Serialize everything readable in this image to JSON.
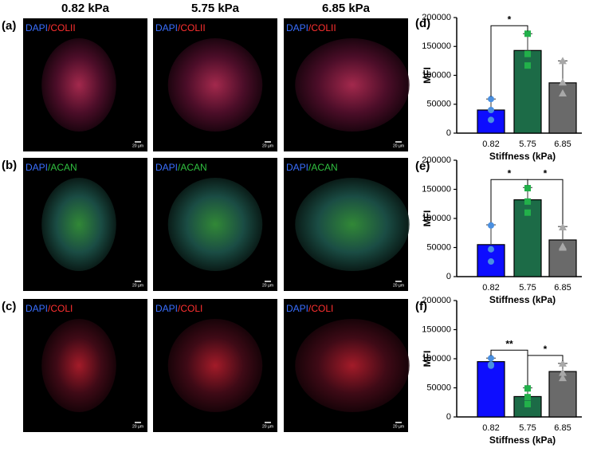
{
  "images": {
    "columns": [
      "0.82 kPa",
      "5.75 kPa",
      "6.85 kPa"
    ],
    "rows": [
      {
        "panel": "(a)",
        "stain_nuclear": "DAPI",
        "stain_marker": "/COLII",
        "scale_bar": "20 µm"
      },
      {
        "panel": "(b)",
        "stain_nuclear": "DAPI",
        "stain_marker": "/ACAN",
        "scale_bar": "20 µm"
      },
      {
        "panel": "(c)",
        "stain_nuclear": "DAPI",
        "stain_marker": "/COLI",
        "scale_bar": "20 µm"
      }
    ]
  },
  "chart_data": [
    {
      "type": "bar",
      "panel": "(d)",
      "categories": [
        "0.82",
        "5.75",
        "6.85"
      ],
      "values": [
        40000,
        143000,
        87000
      ],
      "errors": [
        19000,
        29000,
        38000
      ],
      "colors": [
        "#0d0dff",
        "#1c6b47",
        "#6a6a6a"
      ],
      "point_colors": [
        "#4a8fe0",
        "#22b04a",
        "#a8a8a8"
      ],
      "markers": [
        "circle",
        "square",
        "triangle"
      ],
      "points": [
        [
          59000,
          40000,
          23000
        ],
        [
          172000,
          137000,
          117000
        ],
        [
          125000,
          88000,
          69000
        ]
      ],
      "xlabel": "Stiffness (kPa)",
      "ylabel": "MFI",
      "ylim": [
        0,
        200000
      ],
      "yticks": [
        0,
        50000,
        100000,
        150000,
        200000
      ],
      "significance": [
        {
          "between": [
            "0.82",
            "5.75"
          ],
          "label": "*"
        }
      ]
    },
    {
      "type": "bar",
      "panel": "(e)",
      "categories": [
        "0.82",
        "5.75",
        "6.85"
      ],
      "values": [
        55000,
        132000,
        63000
      ],
      "errors": [
        34000,
        21000,
        23000
      ],
      "colors": [
        "#0d0dff",
        "#1c6b47",
        "#6a6a6a"
      ],
      "point_colors": [
        "#4a8fe0",
        "#22b04a",
        "#a8a8a8"
      ],
      "markers": [
        "circle",
        "square",
        "triangle"
      ],
      "points": [
        [
          88000,
          47000,
          26000
        ],
        [
          152000,
          129000,
          110000
        ],
        [
          85000,
          50000,
          52000
        ]
      ],
      "xlabel": "Stiffness (kPa)",
      "ylabel": "MFI",
      "ylim": [
        0,
        200000
      ],
      "yticks": [
        0,
        50000,
        100000,
        150000,
        200000
      ],
      "significance": [
        {
          "between": [
            "0.82",
            "5.75"
          ],
          "label": "*"
        },
        {
          "between": [
            "5.75",
            "6.85"
          ],
          "label": "*"
        }
      ]
    },
    {
      "type": "bar",
      "panel": "(f)",
      "categories": [
        "0.82",
        "5.75",
        "6.85"
      ],
      "values": [
        95000,
        35000,
        78000
      ],
      "errors": [
        6000,
        15000,
        14000
      ],
      "colors": [
        "#0d0dff",
        "#1c6b47",
        "#6a6a6a"
      ],
      "point_colors": [
        "#4a8fe0",
        "#22b04a",
        "#a8a8a8"
      ],
      "markers": [
        "circle",
        "square",
        "triangle"
      ],
      "points": [
        [
          101000,
          90000,
          88000
        ],
        [
          49000,
          34000,
          22000
        ],
        [
          92000,
          76000,
          67000
        ]
      ],
      "xlabel": "Stiffness (kPa)",
      "ylabel": "MFI",
      "ylim": [
        0,
        200000
      ],
      "yticks": [
        0,
        50000,
        100000,
        150000,
        200000
      ],
      "significance": [
        {
          "between": [
            "0.82",
            "5.75"
          ],
          "label": "**"
        },
        {
          "between": [
            "5.75",
            "6.85"
          ],
          "label": "*"
        }
      ]
    }
  ]
}
